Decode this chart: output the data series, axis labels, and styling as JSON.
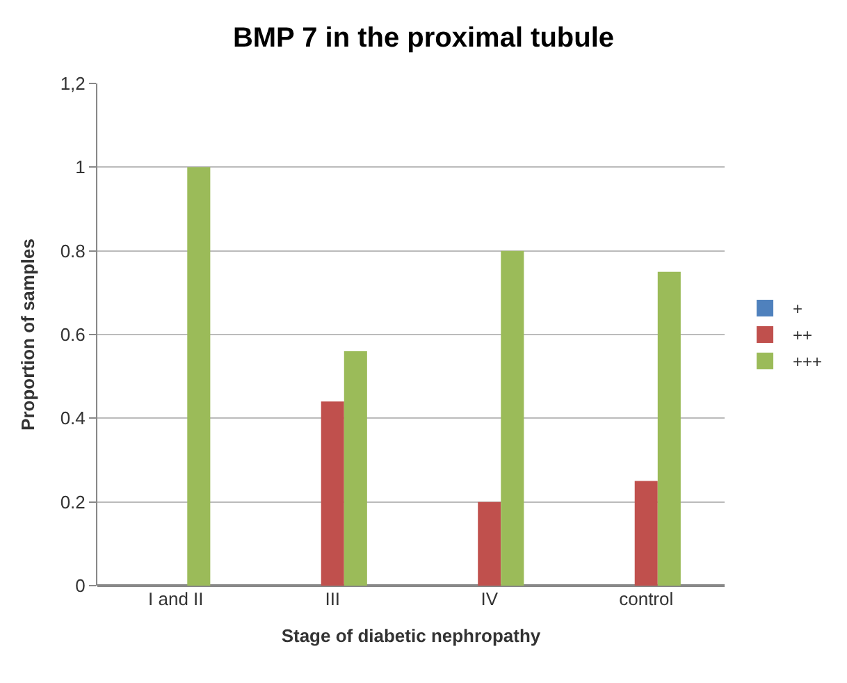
{
  "chart_data": {
    "type": "bar",
    "title": "BMP 7 in the proximal tubule",
    "xlabel": "Stage of diabetic nephropathy",
    "ylabel": "Proportion of samples",
    "categories": [
      "I and II",
      "III",
      "IV",
      "control"
    ],
    "series": [
      {
        "name": "+",
        "color": "#4f81bd",
        "values": [
          0,
          0,
          0,
          0
        ]
      },
      {
        "name": "++",
        "color": "#c0504d",
        "values": [
          0,
          0.44,
          0.2,
          0.25
        ]
      },
      {
        "name": "+++",
        "color": "#9bbb59",
        "values": [
          1,
          0.56,
          0.8,
          0.75
        ]
      }
    ],
    "ylim": [
      0,
      1.2
    ],
    "yticks": [
      0,
      {
        "value": 0.2,
        "label": "0.2"
      },
      {
        "value": 0.4,
        "label": "0.4"
      },
      {
        "value": 0.6,
        "label": "0.6"
      },
      {
        "value": 0.8,
        "label": "0.8"
      },
      1,
      {
        "value": 1.2,
        "label": "1,2"
      }
    ],
    "grid": "y",
    "legend": "right"
  }
}
